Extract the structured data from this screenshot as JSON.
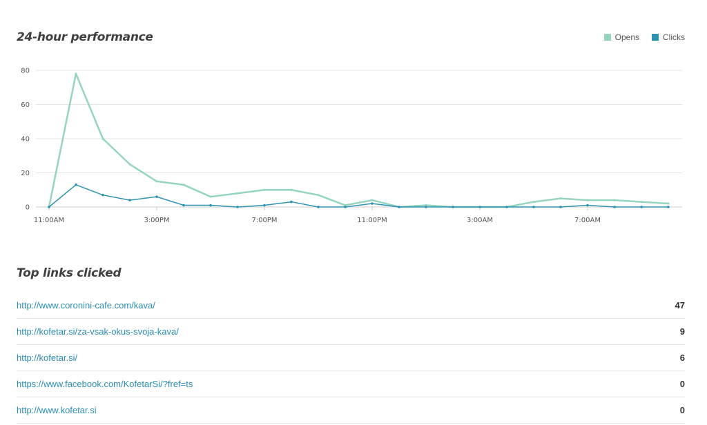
{
  "performance": {
    "title": "24-hour performance"
  },
  "colors": {
    "opens": "#96d4c2",
    "clicks": "#2e93b0",
    "grid": "#e3e3e3",
    "axis": "#cccccc"
  },
  "chart_data": {
    "type": "line",
    "x": [
      "11:00AM",
      "12:00PM",
      "1:00PM",
      "2:00PM",
      "3:00PM",
      "4:00PM",
      "5:00PM",
      "6:00PM",
      "7:00PM",
      "8:00PM",
      "9:00PM",
      "10:00PM",
      "11:00PM",
      "12:00AM",
      "1:00AM",
      "2:00AM",
      "3:00AM",
      "4:00AM",
      "5:00AM",
      "6:00AM",
      "7:00AM",
      "8:00AM",
      "9:00AM",
      "10:00AM"
    ],
    "tick_labels": [
      {
        "index": 0,
        "label": "11:00AM"
      },
      {
        "index": 4,
        "label": "3:00PM"
      },
      {
        "index": 8,
        "label": "7:00PM"
      },
      {
        "index": 12,
        "label": "11:00PM"
      },
      {
        "index": 16,
        "label": "3:00AM"
      },
      {
        "index": 20,
        "label": "7:00AM"
      }
    ],
    "yticks": [
      0,
      20,
      40,
      60,
      80
    ],
    "ylim": [
      0,
      80
    ],
    "grid": true,
    "legend": "top-right",
    "series": [
      {
        "name": "Opens",
        "values": [
          0,
          78,
          40,
          25,
          15,
          13,
          6,
          8,
          10,
          10,
          7,
          1,
          4,
          0,
          1,
          0,
          0,
          0,
          3,
          5,
          4,
          4,
          3,
          2
        ]
      },
      {
        "name": "Clicks",
        "values": [
          0,
          13,
          7,
          4,
          6,
          1,
          1,
          0,
          1,
          3,
          0,
          0,
          2,
          0,
          0,
          0,
          0,
          0,
          0,
          0,
          1,
          0,
          0,
          0
        ]
      }
    ]
  },
  "links": {
    "title": "Top links clicked",
    "items": [
      {
        "url": "http://www.coronini-cafe.com/kava/",
        "count": "47"
      },
      {
        "url": "http://kofetar.si/za-vsak-okus-svoja-kava/",
        "count": "9"
      },
      {
        "url": "http://kofetar.si/",
        "count": "6"
      },
      {
        "url": "https://www.facebook.com/KofetarSi/?fref=ts",
        "count": "0"
      },
      {
        "url": "http://www.kofetar.si",
        "count": "0"
      }
    ]
  }
}
